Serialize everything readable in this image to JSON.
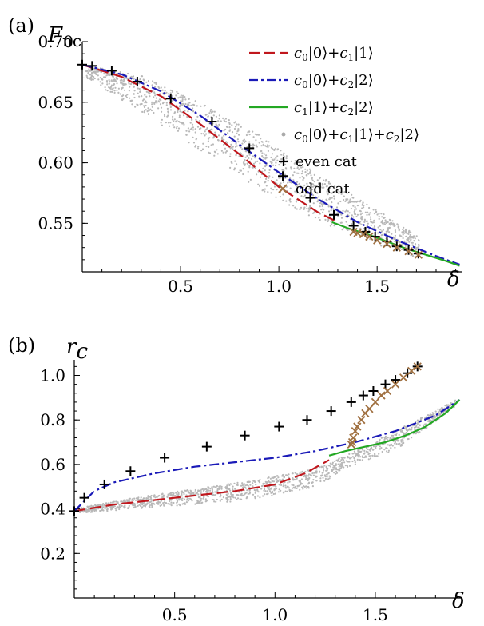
{
  "figure": {
    "panels": [
      {
        "label": "(a)",
        "y_title_main": "F",
        "y_title_sub": "nc",
        "x_title": "δ"
      },
      {
        "label": "(b)",
        "y_title_main": "r",
        "y_title_sub": "c",
        "x_title": "δ"
      }
    ]
  },
  "legend": {
    "entries": [
      {
        "name": "c0|0⟩+c1|1⟩",
        "parts": [
          "c",
          "0",
          "|0⟩+",
          "c",
          "1",
          "|1⟩"
        ],
        "color": "#c0171d",
        "style": "dashed"
      },
      {
        "name": "c0|0⟩+c2|2⟩",
        "parts": [
          "c",
          "0",
          "|0⟩+",
          "c",
          "2",
          "|2⟩"
        ],
        "color": "#1a1ab8",
        "style": "dashdot"
      },
      {
        "name": "c1|1⟩+c2|2⟩",
        "parts": [
          "c",
          "1",
          "|1⟩+",
          "c",
          "2",
          "|2⟩"
        ],
        "color": "#23a823",
        "style": "solid"
      },
      {
        "name": "c0|0⟩+c1|1⟩+c2|2⟩",
        "parts": [
          "c",
          "0",
          "|0⟩+",
          "c",
          "1",
          "|1⟩+",
          "c",
          "2",
          "|2⟩"
        ],
        "color": "#aaaaaa",
        "style": "dot"
      },
      {
        "name": "even cat",
        "color": "#000000",
        "style": "plus"
      },
      {
        "name": "odd cat",
        "color": "#a07040",
        "style": "cross"
      }
    ]
  },
  "chart_data": [
    {
      "type": "line",
      "panel": "a",
      "xlim": [
        0,
        1.93
      ],
      "ylim": [
        0.51,
        0.7
      ],
      "x_ticks": [
        0.5,
        1.0,
        1.5
      ],
      "x_tick_labels": [
        "0.5",
        "1.0",
        "1.5"
      ],
      "y_ticks": [
        0.55,
        0.6,
        0.65,
        0.7
      ],
      "y_tick_labels": [
        "0.55",
        "0.60",
        "0.65",
        "0.70"
      ],
      "series": [
        {
          "name": "c0|0⟩+c1|1⟩",
          "x": [
            0,
            0.2,
            0.4,
            0.6,
            0.8,
            1.0,
            1.2,
            1.3
          ],
          "y": [
            0.681,
            0.671,
            0.655,
            0.632,
            0.607,
            0.58,
            0.559,
            0.551
          ]
        },
        {
          "name": "c0|0⟩+c2|2⟩",
          "x": [
            0,
            0.2,
            0.4,
            0.6,
            0.8,
            1.0,
            1.2,
            1.4,
            1.6,
            1.8,
            1.92
          ],
          "y": [
            0.681,
            0.673,
            0.659,
            0.639,
            0.615,
            0.592,
            0.57,
            0.551,
            0.536,
            0.523,
            0.516
          ]
        },
        {
          "name": "c1|1⟩+c2|2⟩",
          "x": [
            1.27,
            1.35,
            1.45,
            1.55,
            1.65,
            1.75,
            1.85,
            1.92
          ],
          "y": [
            0.551,
            0.546,
            0.541,
            0.535,
            0.529,
            0.524,
            0.519,
            0.515
          ]
        },
        {
          "name": "even cat",
          "x": [
            0.0,
            0.05,
            0.15,
            0.28,
            0.45,
            0.66,
            0.85,
            1.02,
            1.16,
            1.28,
            1.38,
            1.44,
            1.49,
            1.55,
            1.6,
            1.66,
            1.71
          ],
          "y": [
            0.681,
            0.68,
            0.676,
            0.667,
            0.653,
            0.634,
            0.612,
            0.589,
            0.571,
            0.557,
            0.548,
            0.543,
            0.539,
            0.535,
            0.531,
            0.528,
            0.525
          ]
        },
        {
          "name": "odd cat",
          "x": [
            1.38,
            1.4,
            1.43,
            1.46,
            1.5,
            1.55,
            1.6,
            1.66,
            1.71
          ],
          "y": [
            0.543,
            0.542,
            0.541,
            0.539,
            0.536,
            0.533,
            0.53,
            0.527,
            0.524
          ]
        }
      ],
      "scatter_band": {
        "name": "c0|0⟩+c1|1⟩+c2|2⟩",
        "x_range": [
          0.02,
          1.72
        ],
        "lower": {
          "x": [
            0,
            0.3,
            0.6,
            0.9,
            1.2,
            1.5,
            1.72
          ],
          "y": [
            0.672,
            0.642,
            0.61,
            0.578,
            0.552,
            0.532,
            0.521
          ]
        },
        "upper": {
          "x": [
            0,
            0.3,
            0.6,
            0.9,
            1.2,
            1.5,
            1.72
          ],
          "y": [
            0.681,
            0.672,
            0.65,
            0.623,
            0.59,
            0.561,
            0.538
          ]
        }
      }
    },
    {
      "type": "line",
      "panel": "b",
      "xlim": [
        0,
        1.93
      ],
      "ylim": [
        0,
        1.07
      ],
      "x_ticks": [
        0.5,
        1.0,
        1.5
      ],
      "x_tick_labels": [
        "0.5",
        "1.0",
        "1.5"
      ],
      "y_ticks": [
        0.2,
        0.4,
        0.6,
        0.8,
        1.0
      ],
      "y_tick_labels": [
        "0.2",
        "0.4",
        "0.6",
        "0.8",
        "1.0"
      ],
      "series": [
        {
          "name": "c0|0⟩+c1|1⟩",
          "x": [
            0,
            0.2,
            0.4,
            0.6,
            0.8,
            1.0,
            1.15,
            1.27
          ],
          "y": [
            0.39,
            0.42,
            0.44,
            0.46,
            0.48,
            0.51,
            0.56,
            0.62
          ]
        },
        {
          "name": "c0|0⟩+c2|2⟩",
          "x": [
            0,
            0.1,
            0.2,
            0.4,
            0.6,
            0.8,
            1.0,
            1.2,
            1.4,
            1.6,
            1.8,
            1.92
          ],
          "y": [
            0.39,
            0.48,
            0.52,
            0.56,
            0.59,
            0.61,
            0.63,
            0.66,
            0.7,
            0.75,
            0.82,
            0.89
          ]
        },
        {
          "name": "c1|1⟩+c2|2⟩",
          "x": [
            1.27,
            1.35,
            1.45,
            1.55,
            1.65,
            1.75,
            1.85,
            1.92
          ],
          "y": [
            0.64,
            0.66,
            0.68,
            0.7,
            0.73,
            0.77,
            0.83,
            0.89
          ]
        },
        {
          "name": "even cat",
          "x": [
            0.0,
            0.05,
            0.15,
            0.28,
            0.45,
            0.66,
            0.85,
            1.02,
            1.16,
            1.28,
            1.38,
            1.44,
            1.49,
            1.55,
            1.6,
            1.66,
            1.71
          ],
          "y": [
            0.39,
            0.45,
            0.51,
            0.57,
            0.63,
            0.68,
            0.73,
            0.77,
            0.8,
            0.84,
            0.88,
            0.91,
            0.93,
            0.96,
            0.98,
            1.01,
            1.04
          ]
        },
        {
          "name": "odd cat",
          "x": [
            1.38,
            1.385,
            1.39,
            1.4,
            1.41,
            1.43,
            1.45,
            1.47,
            1.5,
            1.53,
            1.56,
            1.6,
            1.64,
            1.68,
            1.71
          ],
          "y": [
            0.69,
            0.7,
            0.72,
            0.75,
            0.77,
            0.8,
            0.83,
            0.85,
            0.88,
            0.91,
            0.93,
            0.96,
            0.99,
            1.02,
            1.04
          ]
        }
      ],
      "scatter_band": {
        "name": "c0|0⟩+c1|1⟩+c2|2⟩",
        "x_range": [
          0.02,
          1.9
        ],
        "lower": {
          "x": [
            0,
            0.3,
            0.6,
            0.9,
            1.2,
            1.4,
            1.6,
            1.9
          ],
          "y": [
            0.38,
            0.4,
            0.42,
            0.44,
            0.5,
            0.6,
            0.66,
            0.86
          ]
        },
        "upper": {
          "x": [
            0,
            0.3,
            0.6,
            0.9,
            1.2,
            1.4,
            1.6,
            1.9
          ],
          "y": [
            0.4,
            0.45,
            0.49,
            0.53,
            0.58,
            0.66,
            0.75,
            0.89
          ]
        }
      }
    }
  ]
}
